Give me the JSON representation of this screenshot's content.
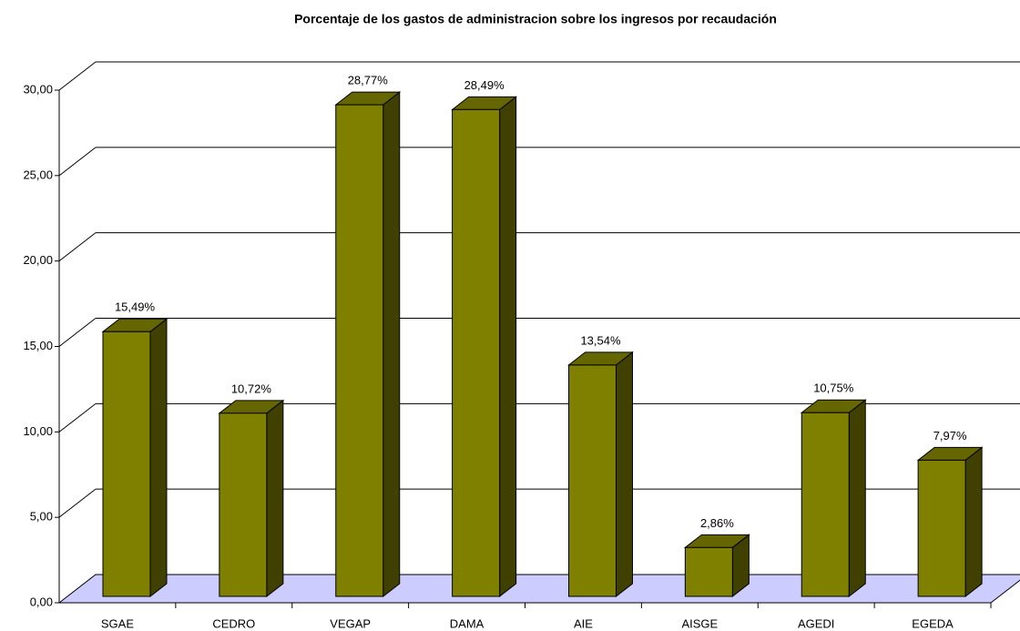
{
  "chart_data": {
    "type": "bar3d",
    "title": "Porcentaje de los gastos de administracion sobre los ingresos por recaudación",
    "categories": [
      "SGAE",
      "CEDRO",
      "VEGAP",
      "DAMA",
      "AIE",
      "AISGE",
      "AGEDI",
      "EGEDA"
    ],
    "values": [
      15.49,
      10.72,
      28.77,
      28.49,
      13.54,
      2.86,
      10.75,
      7.97
    ],
    "value_labels": [
      "15,49%",
      "10,72%",
      "28,77%",
      "28,49%",
      "13,54%",
      "2,86%",
      "10,75%",
      "7,97%"
    ],
    "color": "#808000",
    "side_color": "#404000",
    "top_color": "#666600",
    "floor_color": "#ccccff",
    "ylim": [
      0,
      30
    ],
    "yticks": [
      {
        "value": 0,
        "label": "0,00"
      },
      {
        "value": 5,
        "label": "5,00"
      },
      {
        "value": 10,
        "label": "10,00"
      },
      {
        "value": 15,
        "label": "15,00"
      },
      {
        "value": 20,
        "label": "20,00"
      },
      {
        "value": 25,
        "label": "25,00"
      },
      {
        "value": 30,
        "label": "30,00"
      }
    ],
    "grid": true
  }
}
